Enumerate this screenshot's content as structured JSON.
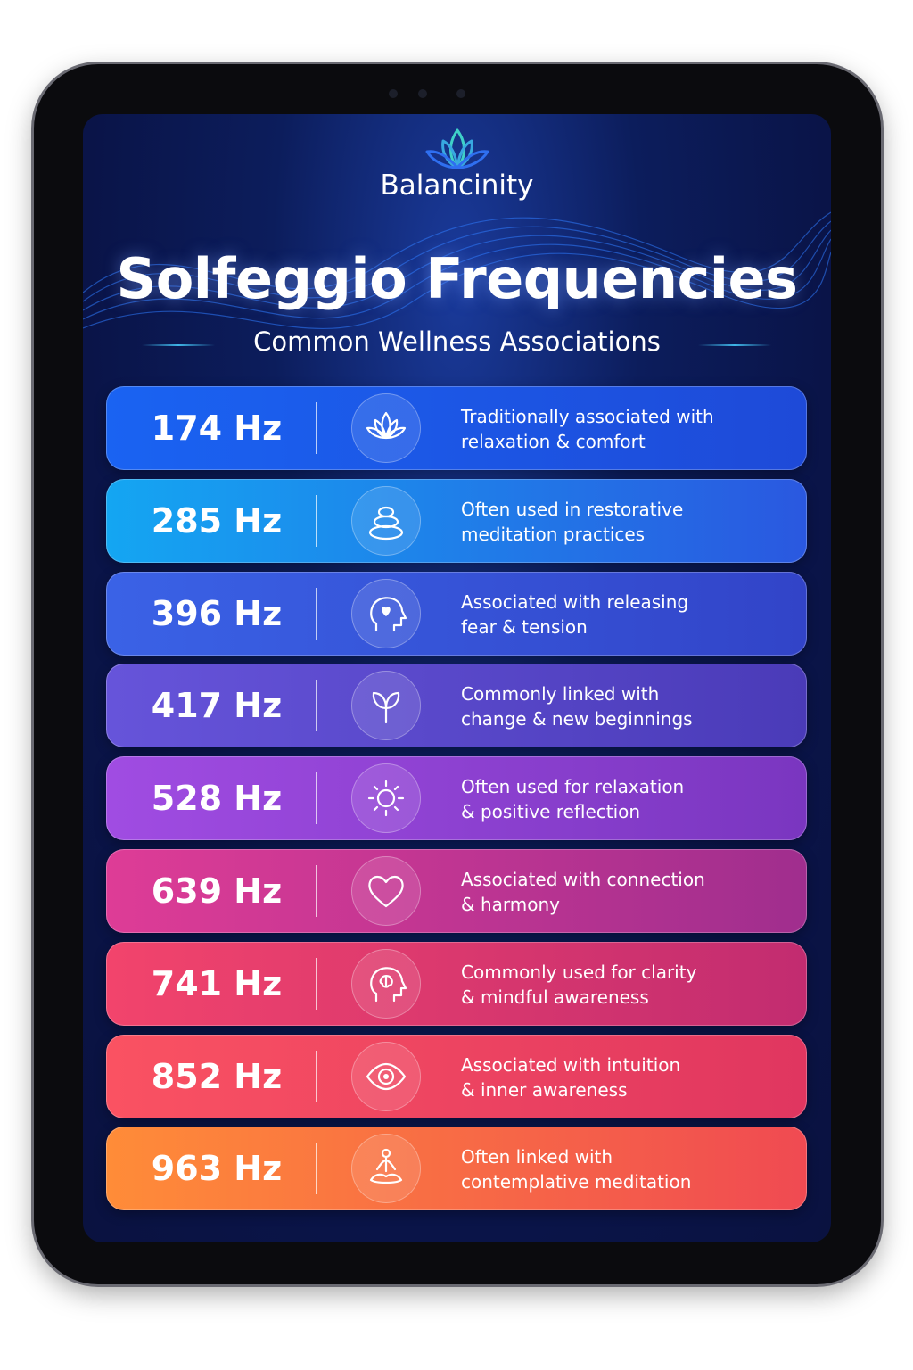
{
  "header": {
    "brand": "Balancinity",
    "title": "Solfeggio Frequencies",
    "subtitle": "Common Wellness Associations"
  },
  "items": [
    {
      "frequency": "174 Hz",
      "description": [
        "Traditionally associated with",
        "relaxation & comfort"
      ]
    },
    {
      "frequency": "285 Hz",
      "description": [
        "Often used in restorative",
        "meditation practices"
      ]
    },
    {
      "frequency": "396 Hz",
      "description": [
        "Associated with releasing",
        "fear & tension"
      ]
    },
    {
      "frequency": "417 Hz",
      "description": [
        "Commonly linked with",
        "change & new beginnings"
      ]
    },
    {
      "frequency": "528 Hz",
      "description": [
        "Often used for relaxation",
        "& positive reflection"
      ]
    },
    {
      "frequency": "639 Hz",
      "description": [
        "Associated with connection",
        "& harmony"
      ]
    },
    {
      "frequency": "741 Hz",
      "description": [
        "Commonly used for clarity",
        "& mindful awareness"
      ]
    },
    {
      "frequency": "852 Hz",
      "description": [
        "Associated with intuition",
        "& inner awareness"
      ]
    },
    {
      "frequency": "963 Hz",
      "description": [
        "Often linked with",
        "contemplative meditation"
      ]
    }
  ]
}
